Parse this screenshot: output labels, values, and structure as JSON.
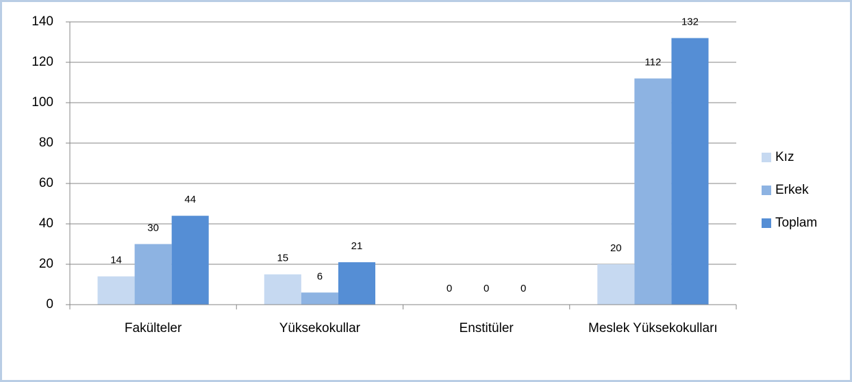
{
  "chart_data": {
    "type": "bar",
    "categories": [
      "Fakülteler",
      "Yüksekokullar",
      "Enstitüler",
      "Meslek Yüksekokulları"
    ],
    "series": [
      {
        "name": "Kız",
        "color": "#c6d9f1",
        "values": [
          14,
          15,
          0,
          20
        ]
      },
      {
        "name": "Erkek",
        "color": "#8db3e2",
        "values": [
          30,
          6,
          0,
          112
        ]
      },
      {
        "name": "Toplam",
        "color": "#558ed5",
        "values": [
          44,
          21,
          0,
          132
        ]
      }
    ],
    "ylim": [
      0,
      140
    ],
    "yticks": [
      0,
      20,
      40,
      60,
      80,
      100,
      120,
      140
    ],
    "grid": true,
    "legend": "right"
  }
}
